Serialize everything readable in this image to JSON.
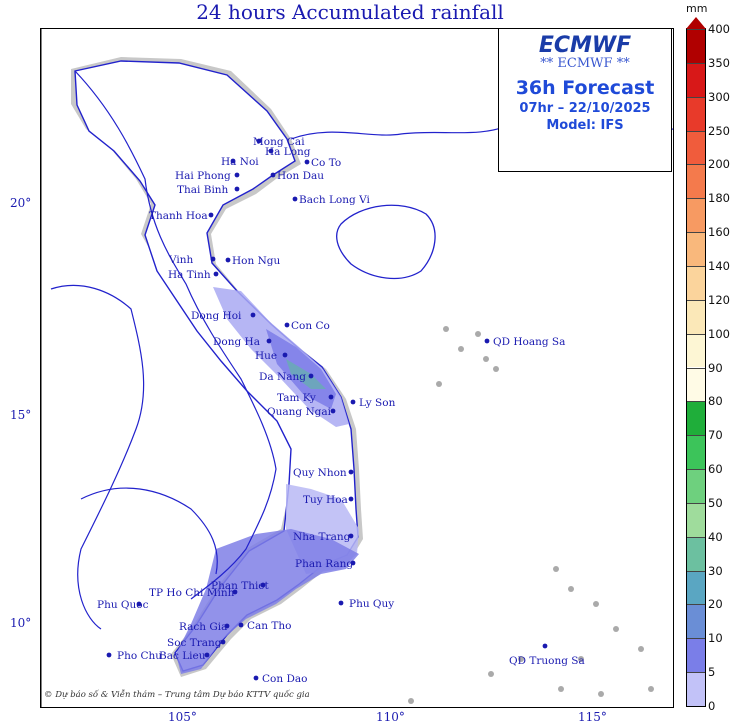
{
  "title": "24 hours Accumulated rainfall",
  "infobox": {
    "logo": "ECMWF",
    "logo_sub": "** ECMWF **",
    "forecast": "36h Forecast",
    "time": "07hr – 22/10/2025",
    "model": "Model: IFS"
  },
  "credit": "© Dự báo số & Viễn thám – Trung tâm Dự báo KTTV quốc gia",
  "axes": {
    "lon_ticks": [
      "105°",
      "110°",
      "115°"
    ],
    "lat_ticks": [
      "20°",
      "15°",
      "10°"
    ]
  },
  "colorbar": {
    "unit": "mm",
    "levels": [
      "400",
      "350",
      "300",
      "250",
      "200",
      "180",
      "160",
      "140",
      "120",
      "100",
      "90",
      "80",
      "70",
      "60",
      "50",
      "40",
      "30",
      "20",
      "10",
      "5",
      "0"
    ],
    "colors": [
      "#b00000",
      "#d81818",
      "#e83a2a",
      "#f05c3c",
      "#f47a4c",
      "#f79a62",
      "#f9b87c",
      "#fbd49c",
      "#fbe8b8",
      "#fdf6d4",
      "#fffbe6",
      "#1fae3a",
      "#3cc45a",
      "#6ed07e",
      "#9fdc9c",
      "#6cc0a0",
      "#5aa6c2",
      "#6a8ed6",
      "#7a7ee8",
      "#c2c2f8"
    ]
  },
  "cities": [
    {
      "name": "Mong Cai"
    },
    {
      "name": "Ha Long"
    },
    {
      "name": "Ha Noi"
    },
    {
      "name": "Co To"
    },
    {
      "name": "Hai Phong"
    },
    {
      "name": "Hon Dau"
    },
    {
      "name": "Thai Binh"
    },
    {
      "name": "Bach Long Vi"
    },
    {
      "name": "Thanh Hoa"
    },
    {
      "name": "Vinh"
    },
    {
      "name": "Hon Ngu"
    },
    {
      "name": "Ha Tinh"
    },
    {
      "name": "Dong Hoi"
    },
    {
      "name": "Con Co"
    },
    {
      "name": "Dong Ha"
    },
    {
      "name": "Hue"
    },
    {
      "name": "Da Nang"
    },
    {
      "name": "Tam Ky"
    },
    {
      "name": "Ly Son"
    },
    {
      "name": "Quang Ngai"
    },
    {
      "name": "QD Hoang Sa"
    },
    {
      "name": "Quy Nhon"
    },
    {
      "name": "Tuy Hoa"
    },
    {
      "name": "Nha Trang"
    },
    {
      "name": "Phan Rang"
    },
    {
      "name": "Phan Thiet"
    },
    {
      "name": "TP Ho Chi Minh"
    },
    {
      "name": "Phu Quoc"
    },
    {
      "name": "Rach Gia"
    },
    {
      "name": "Can Tho"
    },
    {
      "name": "Soc Trang"
    },
    {
      "name": "Phu Quy"
    },
    {
      "name": "Bac Lieu"
    },
    {
      "name": "Pho Chu"
    },
    {
      "name": "Con Dao"
    },
    {
      "name": "QD Truong Sa"
    }
  ]
}
